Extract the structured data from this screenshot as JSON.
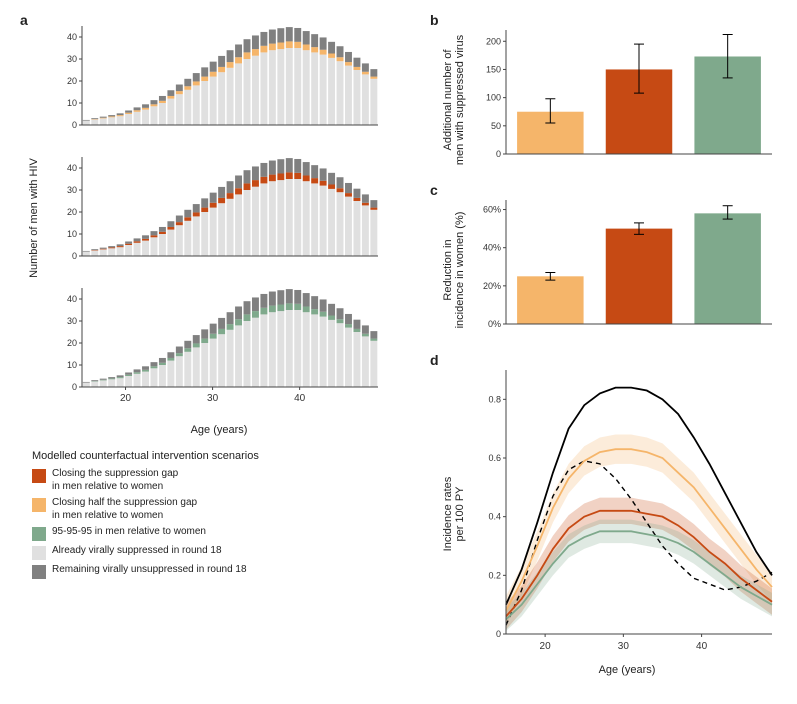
{
  "colors": {
    "dark_orange": "#c64a14",
    "light_orange": "#f5b56a",
    "green": "#7fa98c",
    "light_gray": "#e0e0e0",
    "dark_gray": "#808080",
    "black": "#000000",
    "axis": "#444444",
    "background": "#ffffff"
  },
  "fontsizes": {
    "panel_label": 14,
    "axis_label": 11,
    "tick": 10,
    "legend_title": 11,
    "legend_item": 10
  },
  "panel_a": {
    "label": "a",
    "ylabel": "Number of men with HIV",
    "xlabel": "Age (years)",
    "xlim": [
      15,
      49
    ],
    "ylim": [
      0,
      45
    ],
    "xticks": [
      20,
      30,
      40
    ],
    "yticks": [
      0,
      10,
      20,
      30,
      40
    ],
    "ages": [
      15,
      16,
      17,
      18,
      19,
      20,
      21,
      22,
      23,
      24,
      25,
      26,
      27,
      28,
      29,
      30,
      31,
      32,
      33,
      34,
      35,
      36,
      37,
      38,
      39,
      40,
      41,
      42,
      43,
      44,
      45,
      46,
      47,
      48,
      49
    ],
    "series_base": [
      2,
      2.5,
      3,
      3.5,
      4,
      5,
      6,
      7,
      8.5,
      10,
      12,
      14,
      16,
      18,
      20,
      22,
      24,
      26,
      28,
      30,
      31.5,
      33,
      34,
      34.5,
      35,
      35,
      34,
      33,
      32,
      30.5,
      29,
      27,
      25,
      23,
      21
    ],
    "series_mid_delta": [
      0,
      0.2,
      0.3,
      0.4,
      0.5,
      0.6,
      0.7,
      0.8,
      0.9,
      1,
      1.2,
      1.4,
      1.6,
      1.8,
      2,
      2.2,
      2.4,
      2.6,
      2.8,
      3,
      3,
      3,
      3,
      3,
      3,
      2.8,
      2.6,
      2.4,
      2.2,
      2,
      1.8,
      1.6,
      1.4,
      1.2,
      1
    ],
    "series_top_delta": [
      0.3,
      0.4,
      0.5,
      0.6,
      0.8,
      1,
      1.3,
      1.6,
      1.9,
      2.2,
      2.6,
      3,
      3.4,
      3.8,
      4.2,
      4.6,
      5,
      5.4,
      5.8,
      6,
      6.2,
      6.3,
      6.4,
      6.5,
      6.5,
      6.3,
      6.1,
      5.9,
      5.6,
      5.3,
      5,
      4.6,
      4.2,
      3.8,
      3.4
    ],
    "sub_colors": [
      "#f5b56a",
      "#c64a14",
      "#7fa98c"
    ]
  },
  "panel_b": {
    "label": "b",
    "ylabel": "Additional number of\nmen with suppressed virus",
    "ylim": [
      0,
      220
    ],
    "yticks": [
      0,
      50,
      100,
      150,
      200
    ],
    "bars": [
      {
        "value": 75,
        "err_low": 55,
        "err_high": 98,
        "color": "#f5b56a"
      },
      {
        "value": 150,
        "err_low": 108,
        "err_high": 195,
        "color": "#c64a14"
      },
      {
        "value": 173,
        "err_low": 135,
        "err_high": 212,
        "color": "#7fa98c"
      }
    ]
  },
  "panel_c": {
    "label": "c",
    "ylabel": "Reduction in\nincidence in women (%)",
    "ylim": [
      0,
      65
    ],
    "yticks": [
      0,
      20,
      40,
      60
    ],
    "bars": [
      {
        "value": 25,
        "err_low": 23,
        "err_high": 27,
        "color": "#f5b56a"
      },
      {
        "value": 50,
        "err_low": 47,
        "err_high": 53,
        "color": "#c64a14"
      },
      {
        "value": 58,
        "err_low": 55,
        "err_high": 62,
        "color": "#7fa98c"
      }
    ]
  },
  "panel_d": {
    "label": "d",
    "ylabel": "Incidence rates\nper 100 PY",
    "xlabel": "Age (years)",
    "xlim": [
      15,
      49
    ],
    "ylim": [
      0,
      0.9
    ],
    "xticks": [
      20,
      30,
      40
    ],
    "yticks": [
      0,
      0.2,
      0.4,
      0.6,
      0.8
    ],
    "ages": [
      15,
      17,
      19,
      21,
      23,
      25,
      27,
      29,
      31,
      33,
      35,
      37,
      39,
      41,
      43,
      45,
      47,
      49
    ],
    "black_solid": [
      0.1,
      0.22,
      0.38,
      0.55,
      0.7,
      0.78,
      0.82,
      0.84,
      0.84,
      0.83,
      0.8,
      0.75,
      0.67,
      0.58,
      0.48,
      0.38,
      0.28,
      0.2
    ],
    "black_dash": [
      0.03,
      0.15,
      0.32,
      0.47,
      0.56,
      0.59,
      0.58,
      0.53,
      0.46,
      0.38,
      0.3,
      0.24,
      0.19,
      0.17,
      0.15,
      0.16,
      0.18,
      0.21
    ],
    "light_orange": [
      0.08,
      0.18,
      0.3,
      0.43,
      0.53,
      0.59,
      0.62,
      0.63,
      0.63,
      0.62,
      0.6,
      0.55,
      0.5,
      0.43,
      0.36,
      0.29,
      0.22,
      0.16
    ],
    "dark_orange": [
      0.06,
      0.12,
      0.2,
      0.29,
      0.36,
      0.4,
      0.42,
      0.42,
      0.42,
      0.41,
      0.4,
      0.37,
      0.33,
      0.28,
      0.24,
      0.19,
      0.15,
      0.11
    ],
    "green": [
      0.05,
      0.1,
      0.17,
      0.24,
      0.3,
      0.33,
      0.35,
      0.35,
      0.35,
      0.34,
      0.33,
      0.31,
      0.28,
      0.24,
      0.2,
      0.16,
      0.13,
      0.1
    ],
    "ribbon_half": {
      "light_orange": 0.05,
      "dark_orange": 0.045,
      "green": 0.04
    }
  },
  "legend": {
    "title": "Modelled counterfactual intervention scenarios",
    "items": [
      {
        "color": "#c64a14",
        "label": "Closing the suppression gap\nin men relative to women"
      },
      {
        "color": "#f5b56a",
        "label": "Closing half the suppression gap\nin men relative to women"
      },
      {
        "color": "#7fa98c",
        "label": "95-95-95 in men relative to women"
      },
      {
        "color": "#e0e0e0",
        "label": "Already virally suppressed in round 18"
      },
      {
        "color": "#808080",
        "label": "Remaining virally unsuppressed in round 18"
      }
    ]
  }
}
